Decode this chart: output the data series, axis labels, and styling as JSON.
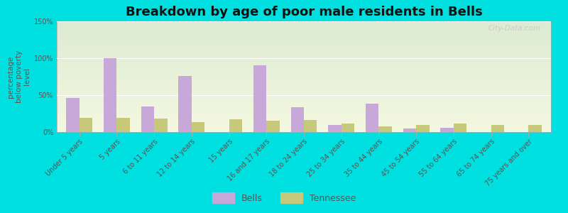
{
  "title": "Breakdown by age of poor male residents in Bells",
  "ylabel": "percentage\nbelow poverty\nlevel",
  "categories": [
    "Under 5 years",
    "5 years",
    "6 to 11 years",
    "12 to 14 years",
    "15 years",
    "16 and 17 years",
    "18 to 24 years",
    "25 to 34 years",
    "35 to 44 years",
    "45 to 54 years",
    "55 to 64 years",
    "65 to 74 years",
    "75 years and over"
  ],
  "bells_values": [
    46,
    100,
    35,
    76,
    0,
    90,
    34,
    10,
    38,
    5,
    6,
    0,
    0
  ],
  "tennessee_values": [
    19,
    19,
    18,
    13,
    17,
    15,
    16,
    12,
    8,
    10,
    12,
    10,
    10
  ],
  "bells_color": "#c8a8d8",
  "tennessee_color": "#c8c87a",
  "background_outer": "#00e0e0",
  "background_plot": "#e8f0d0",
  "ylim": [
    0,
    150
  ],
  "yticks": [
    0,
    50,
    100,
    150
  ],
  "ytick_labels": [
    "0%",
    "50%",
    "100%",
    "150%"
  ],
  "bar_width": 0.35,
  "title_fontsize": 13,
  "ylabel_fontsize": 7.5,
  "tick_fontsize": 7,
  "legend_fontsize": 9
}
